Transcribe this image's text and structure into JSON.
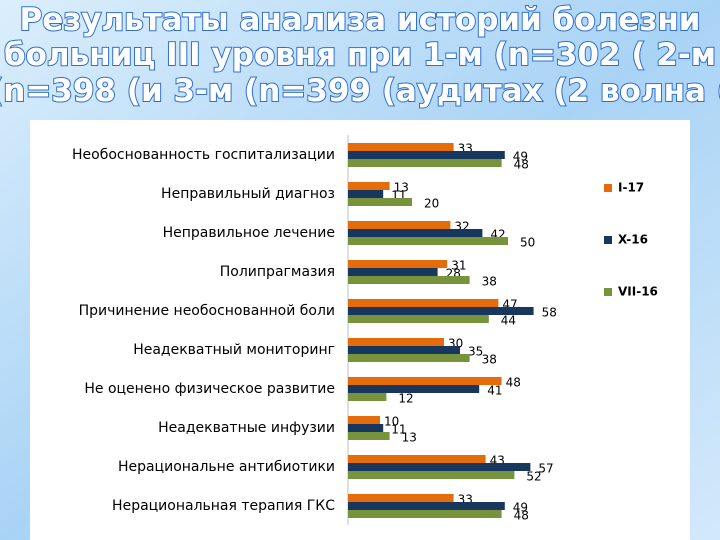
{
  "chart_data": {
    "type": "bar",
    "orientation": "horizontal",
    "title": [
      "Результаты анализа историй болезни",
      "больниц III уровня при 1-м (n=302 ( 2-м",
      "(n=398 (и 3-м (n=399 (аудитах (2 волна ("
    ],
    "categories": [
      "Необоснованность госпитализации",
      "Неправильный диагноз",
      "Неправильное лечение",
      "Полипрагмазия",
      "Причинение необоснованной боли",
      "Неадекватный мониторинг",
      "Не оценено физическое развитие",
      "Неадекватные инфузии",
      "Нерациональне антибиотики",
      "Нерациональная  терапия ГКС"
    ],
    "series": [
      {
        "name": "I-17",
        "color": "#e46c0a",
        "values": [
          33,
          13,
          32,
          31,
          47,
          30,
          48,
          10,
          43,
          33
        ]
      },
      {
        "name": "X-16",
        "color": "#17375e",
        "values": [
          49,
          11,
          42,
          28,
          58,
          35,
          41,
          11,
          57,
          49
        ]
      },
      {
        "name": "VII-16",
        "color": "#77933c",
        "values": [
          48,
          20,
          50,
          38,
          44,
          38,
          12,
          13,
          52,
          48
        ]
      }
    ],
    "legend": "right"
  }
}
